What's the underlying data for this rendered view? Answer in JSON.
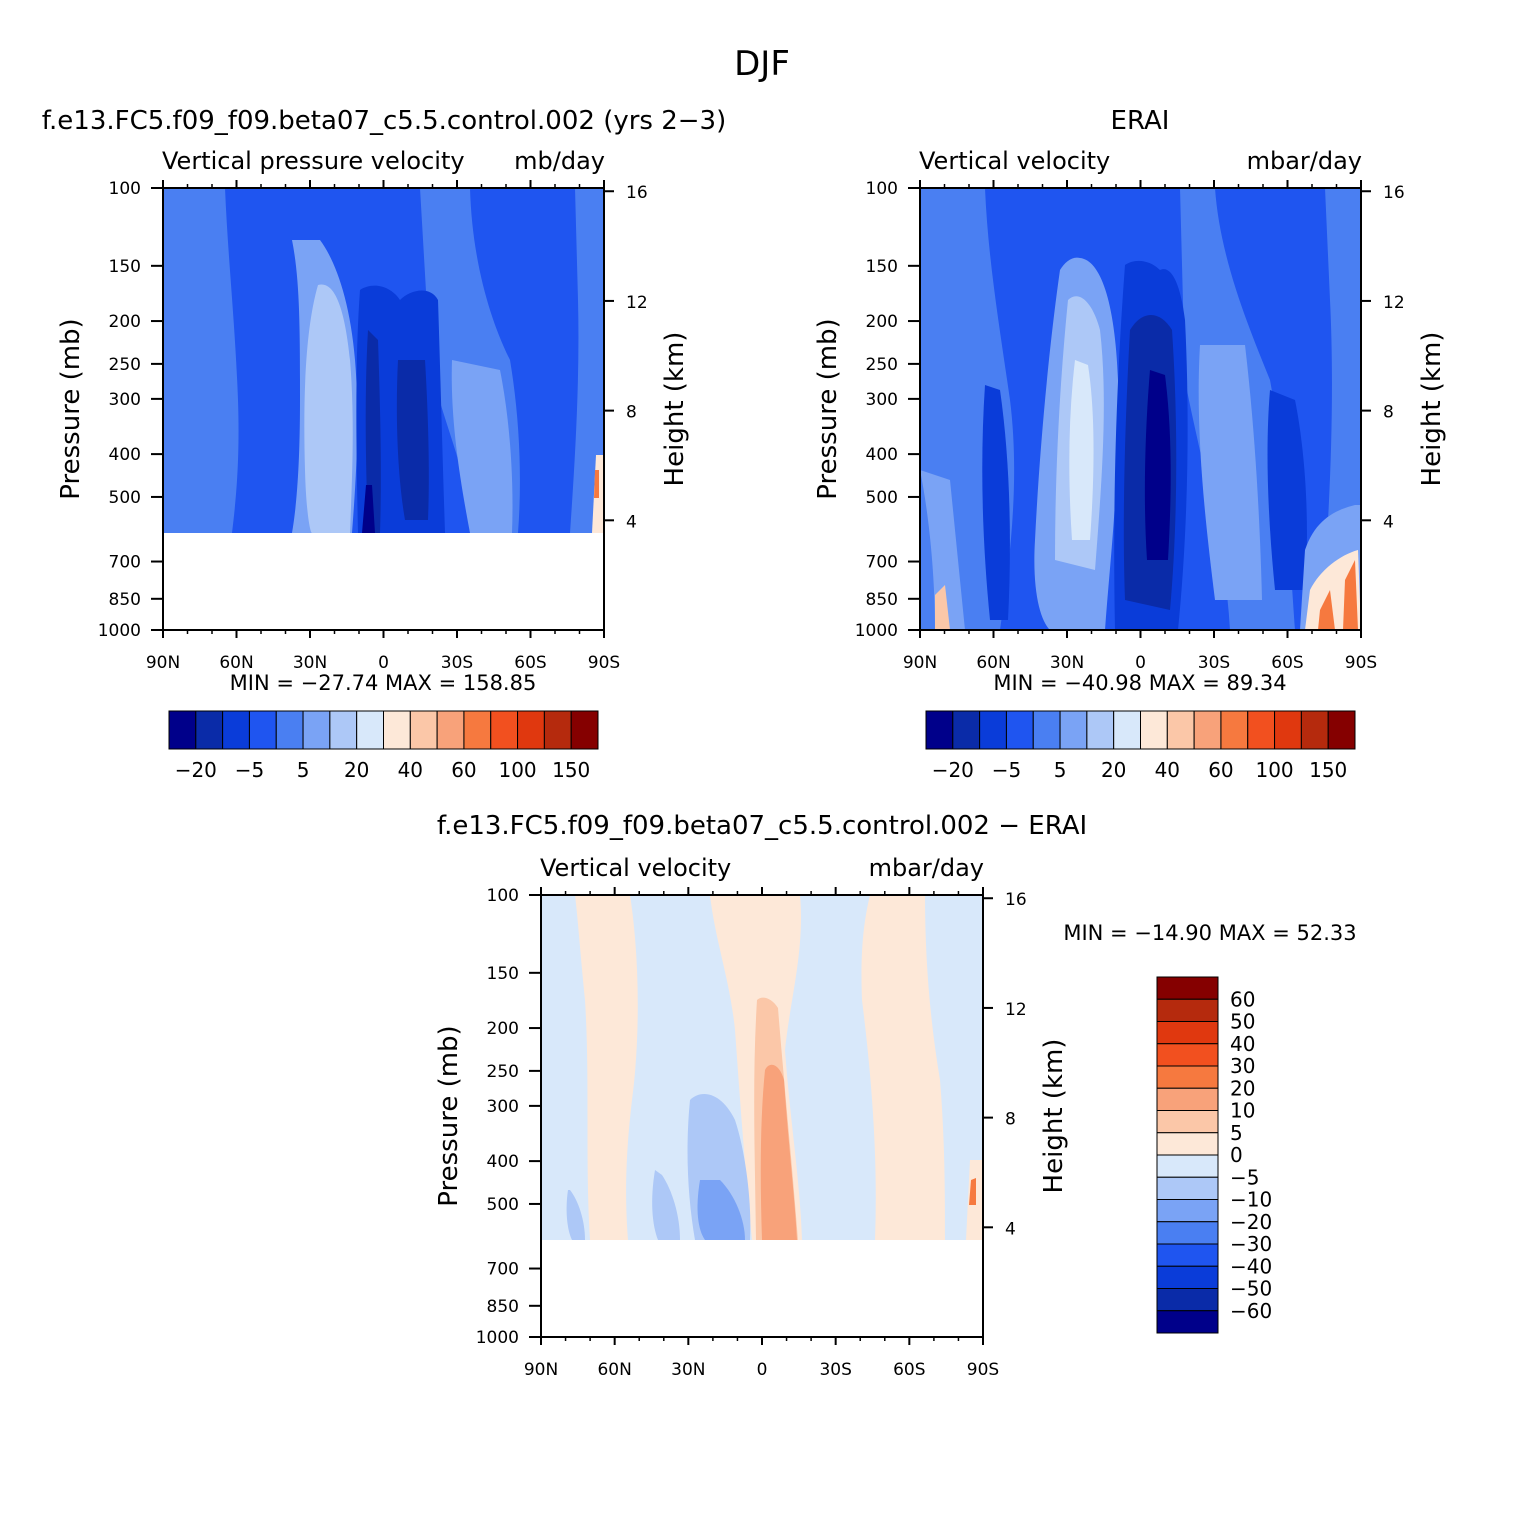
{
  "page_title": "DJF",
  "colors": {
    "scale": [
      "#00008a",
      "#0a2ba8",
      "#0a3cd9",
      "#1f55f0",
      "#4a7ff2",
      "#7aa3f5",
      "#adc8f7",
      "#d8e8fa",
      "#fde8d8",
      "#fbc7a8",
      "#f8a27a",
      "#f6793f",
      "#f2501f",
      "#e0380f",
      "#b52a0d",
      "#850000"
    ]
  },
  "chart_data": [
    {
      "type": "heatmap",
      "id": "model",
      "title": "f.e13.FC5.f09_f09.beta07_c5.5.control.002 (yrs 2−3)",
      "left_label": "Vertical pressure velocity",
      "right_label": "mb/day",
      "ylabel": "Pressure (mb)",
      "y2label": "Height (km)",
      "x_ticks": [
        "90N",
        "60N",
        "30N",
        "0",
        "30S",
        "60S",
        "90S"
      ],
      "y_ticks": [
        "100",
        "150",
        "200",
        "250",
        "300",
        "400",
        "500",
        "700",
        "850",
        "1000"
      ],
      "y2_ticks": [
        "16",
        "12",
        "8",
        "4"
      ],
      "stats": "MIN = −27.74   MAX = 158.85",
      "colorbar_labels": [
        "−20",
        "−5",
        "5",
        "20",
        "40",
        "60",
        "100",
        "150"
      ],
      "ylim": [
        1000,
        100
      ],
      "xlim": [
        "90N",
        "90S"
      ],
      "data_bottom_mb": 600
    },
    {
      "type": "heatmap",
      "id": "obs",
      "title": "ERAI",
      "left_label": "Vertical velocity",
      "right_label": "mbar/day",
      "ylabel": "Pressure (mb)",
      "y2label": "Height (km)",
      "x_ticks": [
        "90N",
        "60N",
        "30N",
        "0",
        "30S",
        "60S",
        "90S"
      ],
      "y_ticks": [
        "100",
        "150",
        "200",
        "250",
        "300",
        "400",
        "500",
        "700",
        "850",
        "1000"
      ],
      "y2_ticks": [
        "16",
        "12",
        "8",
        "4"
      ],
      "stats": "MIN = −40.98   MAX =   89.34",
      "colorbar_labels": [
        "−20",
        "−5",
        "5",
        "20",
        "40",
        "60",
        "100",
        "150"
      ],
      "ylim": [
        1000,
        100
      ],
      "xlim": [
        "90N",
        "90S"
      ]
    },
    {
      "type": "heatmap",
      "id": "diff",
      "title": "f.e13.FC5.f09_f09.beta07_c5.5.control.002 − ERAI",
      "left_label": "Vertical velocity",
      "right_label": "mbar/day",
      "ylabel": "Pressure (mb)",
      "y2label": "Height (km)",
      "x_ticks": [
        "90N",
        "60N",
        "30N",
        "0",
        "30S",
        "60S",
        "90S"
      ],
      "y_ticks": [
        "100",
        "150",
        "200",
        "250",
        "300",
        "400",
        "500",
        "700",
        "850",
        "1000"
      ],
      "y2_ticks": [
        "16",
        "12",
        "8",
        "4"
      ],
      "stats": "MIN = −14.90   MAX =   52.33",
      "colorbar_labels": [
        "60",
        "50",
        "40",
        "30",
        "20",
        "10",
        "5",
        "0",
        "−5",
        "−10",
        "−20",
        "−30",
        "−40",
        "−50",
        "−60"
      ],
      "ylim": [
        1000,
        100
      ],
      "xlim": [
        "90N",
        "90S"
      ],
      "data_bottom_mb": 600
    }
  ]
}
